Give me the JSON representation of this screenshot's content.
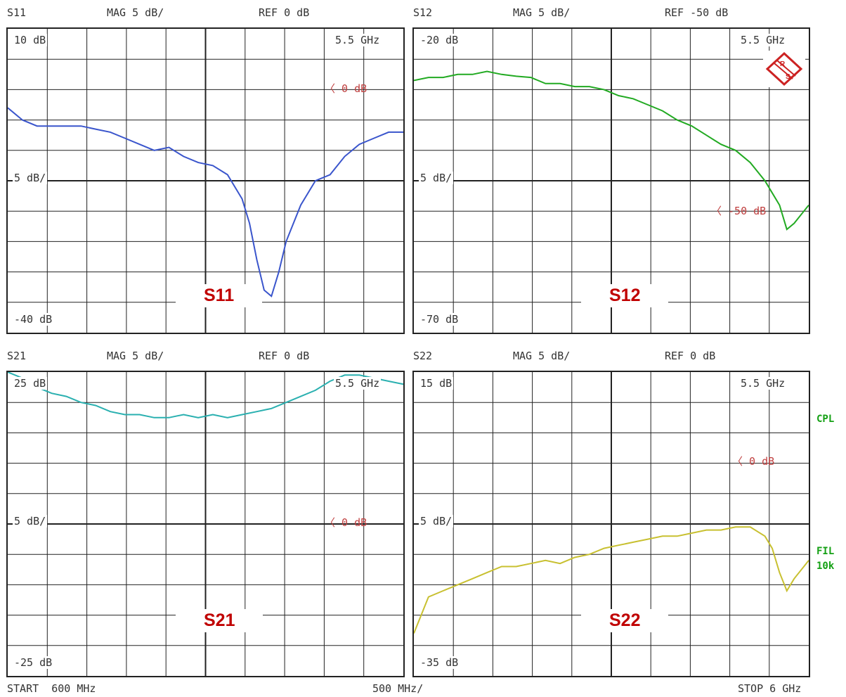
{
  "colors": {
    "S11": "#3a55cc",
    "S12": "#22aa22",
    "S21": "#2ab0b0",
    "S22": "#c8c030",
    "ref_marker": "#c04040",
    "panel_label": "#c00000",
    "side_label": "#14a014"
  },
  "footer": {
    "start": "START  600 MHz",
    "div": "500 MHz/",
    "stop": "STOP 6 GHz"
  },
  "side_labels": {
    "cpl": "CPL",
    "fil": "FIL",
    "bw": "10k"
  },
  "panels": [
    {
      "name": "S11",
      "hdr_param": "S11",
      "hdr_mag": "MAG 5 dB/",
      "hdr_ref": "REF 0 dB",
      "top_db": "10 dB",
      "mid_db": "5 dB/",
      "bot_db": "-40 dB",
      "freq": "5.5 GHz",
      "ref_label": "0 dB",
      "label": "S11",
      "logo": "R&S"
    },
    {
      "name": "S12",
      "hdr_param": "S12",
      "hdr_mag": "MAG 5 dB/",
      "hdr_ref": "REF -50 dB",
      "top_db": "-20 dB",
      "mid_db": "5 dB/",
      "bot_db": "-70 dB",
      "freq": "5.5 GHz",
      "ref_label": "-50 dB",
      "label": "S12"
    },
    {
      "name": "S21",
      "hdr_param": "S21",
      "hdr_mag": "MAG 5 dB/",
      "hdr_ref": "REF 0 dB",
      "top_db": "25 dB",
      "mid_db": "5 dB/",
      "bot_db": "-25 dB",
      "freq": "5.5 GHz",
      "ref_label": "0 dB",
      "label": "S21"
    },
    {
      "name": "S22",
      "hdr_param": "S22",
      "hdr_mag": "MAG 5 dB/",
      "hdr_ref": "REF 0 dB",
      "top_db": "15 dB",
      "mid_db": "5 dB/",
      "bot_db": "-35 dB",
      "freq": "5.5 GHz",
      "ref_label": "0 dB",
      "label": "S22"
    }
  ],
  "chart_data": [
    {
      "type": "line",
      "title": "S11",
      "x_unit": "GHz",
      "xlim": [
        0.6,
        6.0
      ],
      "ylim": [
        -40,
        10
      ],
      "y_ref": 0,
      "grid": true,
      "series": [
        {
          "name": "S11",
          "x": [
            0.6,
            0.8,
            1.0,
            1.2,
            1.4,
            1.6,
            1.8,
            2.0,
            2.2,
            2.4,
            2.6,
            2.8,
            3.0,
            3.2,
            3.4,
            3.6,
            3.8,
            3.9,
            4.0,
            4.1,
            4.2,
            4.3,
            4.4,
            4.6,
            4.8,
            5.0,
            5.2,
            5.4,
            5.6,
            5.8,
            6.0
          ],
          "y": [
            -3,
            -5,
            -6,
            -6,
            -6,
            -6,
            -6.5,
            -7,
            -8,
            -9,
            -10,
            -9.5,
            -11,
            -12,
            -12.5,
            -14,
            -18,
            -22,
            -28,
            -33,
            -34,
            -30,
            -25,
            -19,
            -15,
            -14,
            -11,
            -9,
            -8,
            -7,
            -7
          ]
        }
      ]
    },
    {
      "type": "line",
      "title": "S12",
      "x_unit": "GHz",
      "xlim": [
        0.6,
        6.0
      ],
      "ylim": [
        -70,
        -20
      ],
      "y_ref": -50,
      "grid": true,
      "series": [
        {
          "name": "S12",
          "x": [
            0.6,
            0.8,
            1.0,
            1.2,
            1.4,
            1.6,
            1.8,
            2.0,
            2.2,
            2.4,
            2.6,
            2.8,
            3.0,
            3.2,
            3.4,
            3.6,
            3.8,
            4.0,
            4.2,
            4.4,
            4.6,
            4.8,
            5.0,
            5.2,
            5.4,
            5.5,
            5.6,
            5.7,
            5.8,
            6.0
          ],
          "y": [
            -28.5,
            -28,
            -28,
            -27.5,
            -27.5,
            -27,
            -27.5,
            -27.8,
            -28,
            -29,
            -29,
            -29.5,
            -29.5,
            -30,
            -31,
            -31.5,
            -32.5,
            -33.5,
            -35,
            -36,
            -37.5,
            -39,
            -40,
            -42,
            -45,
            -47,
            -49,
            -53,
            -52,
            -49
          ]
        }
      ]
    },
    {
      "type": "line",
      "title": "S21",
      "x_unit": "GHz",
      "xlim": [
        0.6,
        6.0
      ],
      "ylim": [
        -25,
        25
      ],
      "y_ref": 0,
      "grid": true,
      "series": [
        {
          "name": "S21",
          "x": [
            0.6,
            0.8,
            1.0,
            1.2,
            1.4,
            1.6,
            1.8,
            2.0,
            2.2,
            2.4,
            2.6,
            2.8,
            3.0,
            3.2,
            3.4,
            3.6,
            3.8,
            4.0,
            4.2,
            4.4,
            4.6,
            4.8,
            5.0,
            5.2,
            5.4,
            5.6,
            5.8,
            6.0
          ],
          "y": [
            25,
            24,
            22.5,
            21.5,
            21,
            20,
            19.5,
            18.5,
            18,
            18,
            17.5,
            17.5,
            18,
            17.5,
            18,
            17.5,
            18,
            18.5,
            19,
            20,
            21,
            22,
            23.5,
            24.5,
            24.5,
            24,
            23.5,
            23
          ]
        }
      ]
    },
    {
      "type": "line",
      "title": "S22",
      "x_unit": "GHz",
      "xlim": [
        0.6,
        6.0
      ],
      "ylim": [
        -35,
        15
      ],
      "y_ref": 0,
      "grid": true,
      "series": [
        {
          "name": "S22",
          "x": [
            0.6,
            0.7,
            0.8,
            1.0,
            1.2,
            1.4,
            1.6,
            1.8,
            2.0,
            2.2,
            2.4,
            2.6,
            2.8,
            3.0,
            3.2,
            3.4,
            3.6,
            3.8,
            4.0,
            4.2,
            4.4,
            4.6,
            4.8,
            5.0,
            5.2,
            5.4,
            5.5,
            5.6,
            5.7,
            5.8,
            6.0
          ],
          "y": [
            -28,
            -25,
            -22,
            -21,
            -20,
            -19,
            -18,
            -17,
            -17,
            -16.5,
            -16,
            -16.5,
            -15.5,
            -15,
            -14,
            -13.5,
            -13,
            -12.5,
            -12,
            -12,
            -11.5,
            -11,
            -11,
            -10.5,
            -10.5,
            -12,
            -14,
            -18,
            -21,
            -19,
            -16
          ]
        }
      ]
    }
  ]
}
